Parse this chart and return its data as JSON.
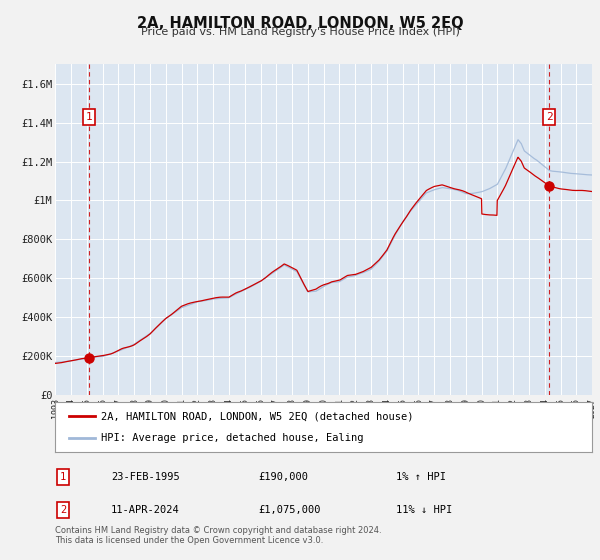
{
  "title": "2A, HAMILTON ROAD, LONDON, W5 2EQ",
  "subtitle": "Price paid vs. HM Land Registry's House Price Index (HPI)",
  "bg_color": "#dce6f1",
  "fig_bg_color": "#f2f2f2",
  "hpi_line_color": "#a0b8d8",
  "price_line_color": "#cc0000",
  "dashed_line_color": "#cc0000",
  "point1_x": 1995.13,
  "point1_y": 190000,
  "point2_x": 2024.28,
  "point2_y": 1075000,
  "xmin": 1993,
  "xmax": 2027,
  "ymin": 0,
  "ymax": 1700000,
  "yticks": [
    0,
    200000,
    400000,
    600000,
    800000,
    1000000,
    1200000,
    1400000,
    1600000
  ],
  "ytick_labels": [
    "£0",
    "£200K",
    "£400K",
    "£600K",
    "£800K",
    "£1M",
    "£1.2M",
    "£1.4M",
    "£1.6M"
  ],
  "xticks": [
    1993,
    1994,
    1995,
    1996,
    1997,
    1998,
    1999,
    2000,
    2001,
    2002,
    2003,
    2004,
    2005,
    2006,
    2007,
    2008,
    2009,
    2010,
    2011,
    2012,
    2013,
    2014,
    2015,
    2016,
    2017,
    2018,
    2019,
    2020,
    2021,
    2022,
    2023,
    2024,
    2025,
    2026,
    2027
  ],
  "legend_label1": "2A, HAMILTON ROAD, LONDON, W5 2EQ (detached house)",
  "legend_label2": "HPI: Average price, detached house, Ealing",
  "label1_date": "23-FEB-1995",
  "label1_price": "£190,000",
  "label1_hpi": "1% ↑ HPI",
  "label2_date": "11-APR-2024",
  "label2_price": "£1,075,000",
  "label2_hpi": "11% ↓ HPI",
  "footnote1": "Contains HM Land Registry data © Crown copyright and database right 2024.",
  "footnote2": "This data is licensed under the Open Government Licence v3.0."
}
